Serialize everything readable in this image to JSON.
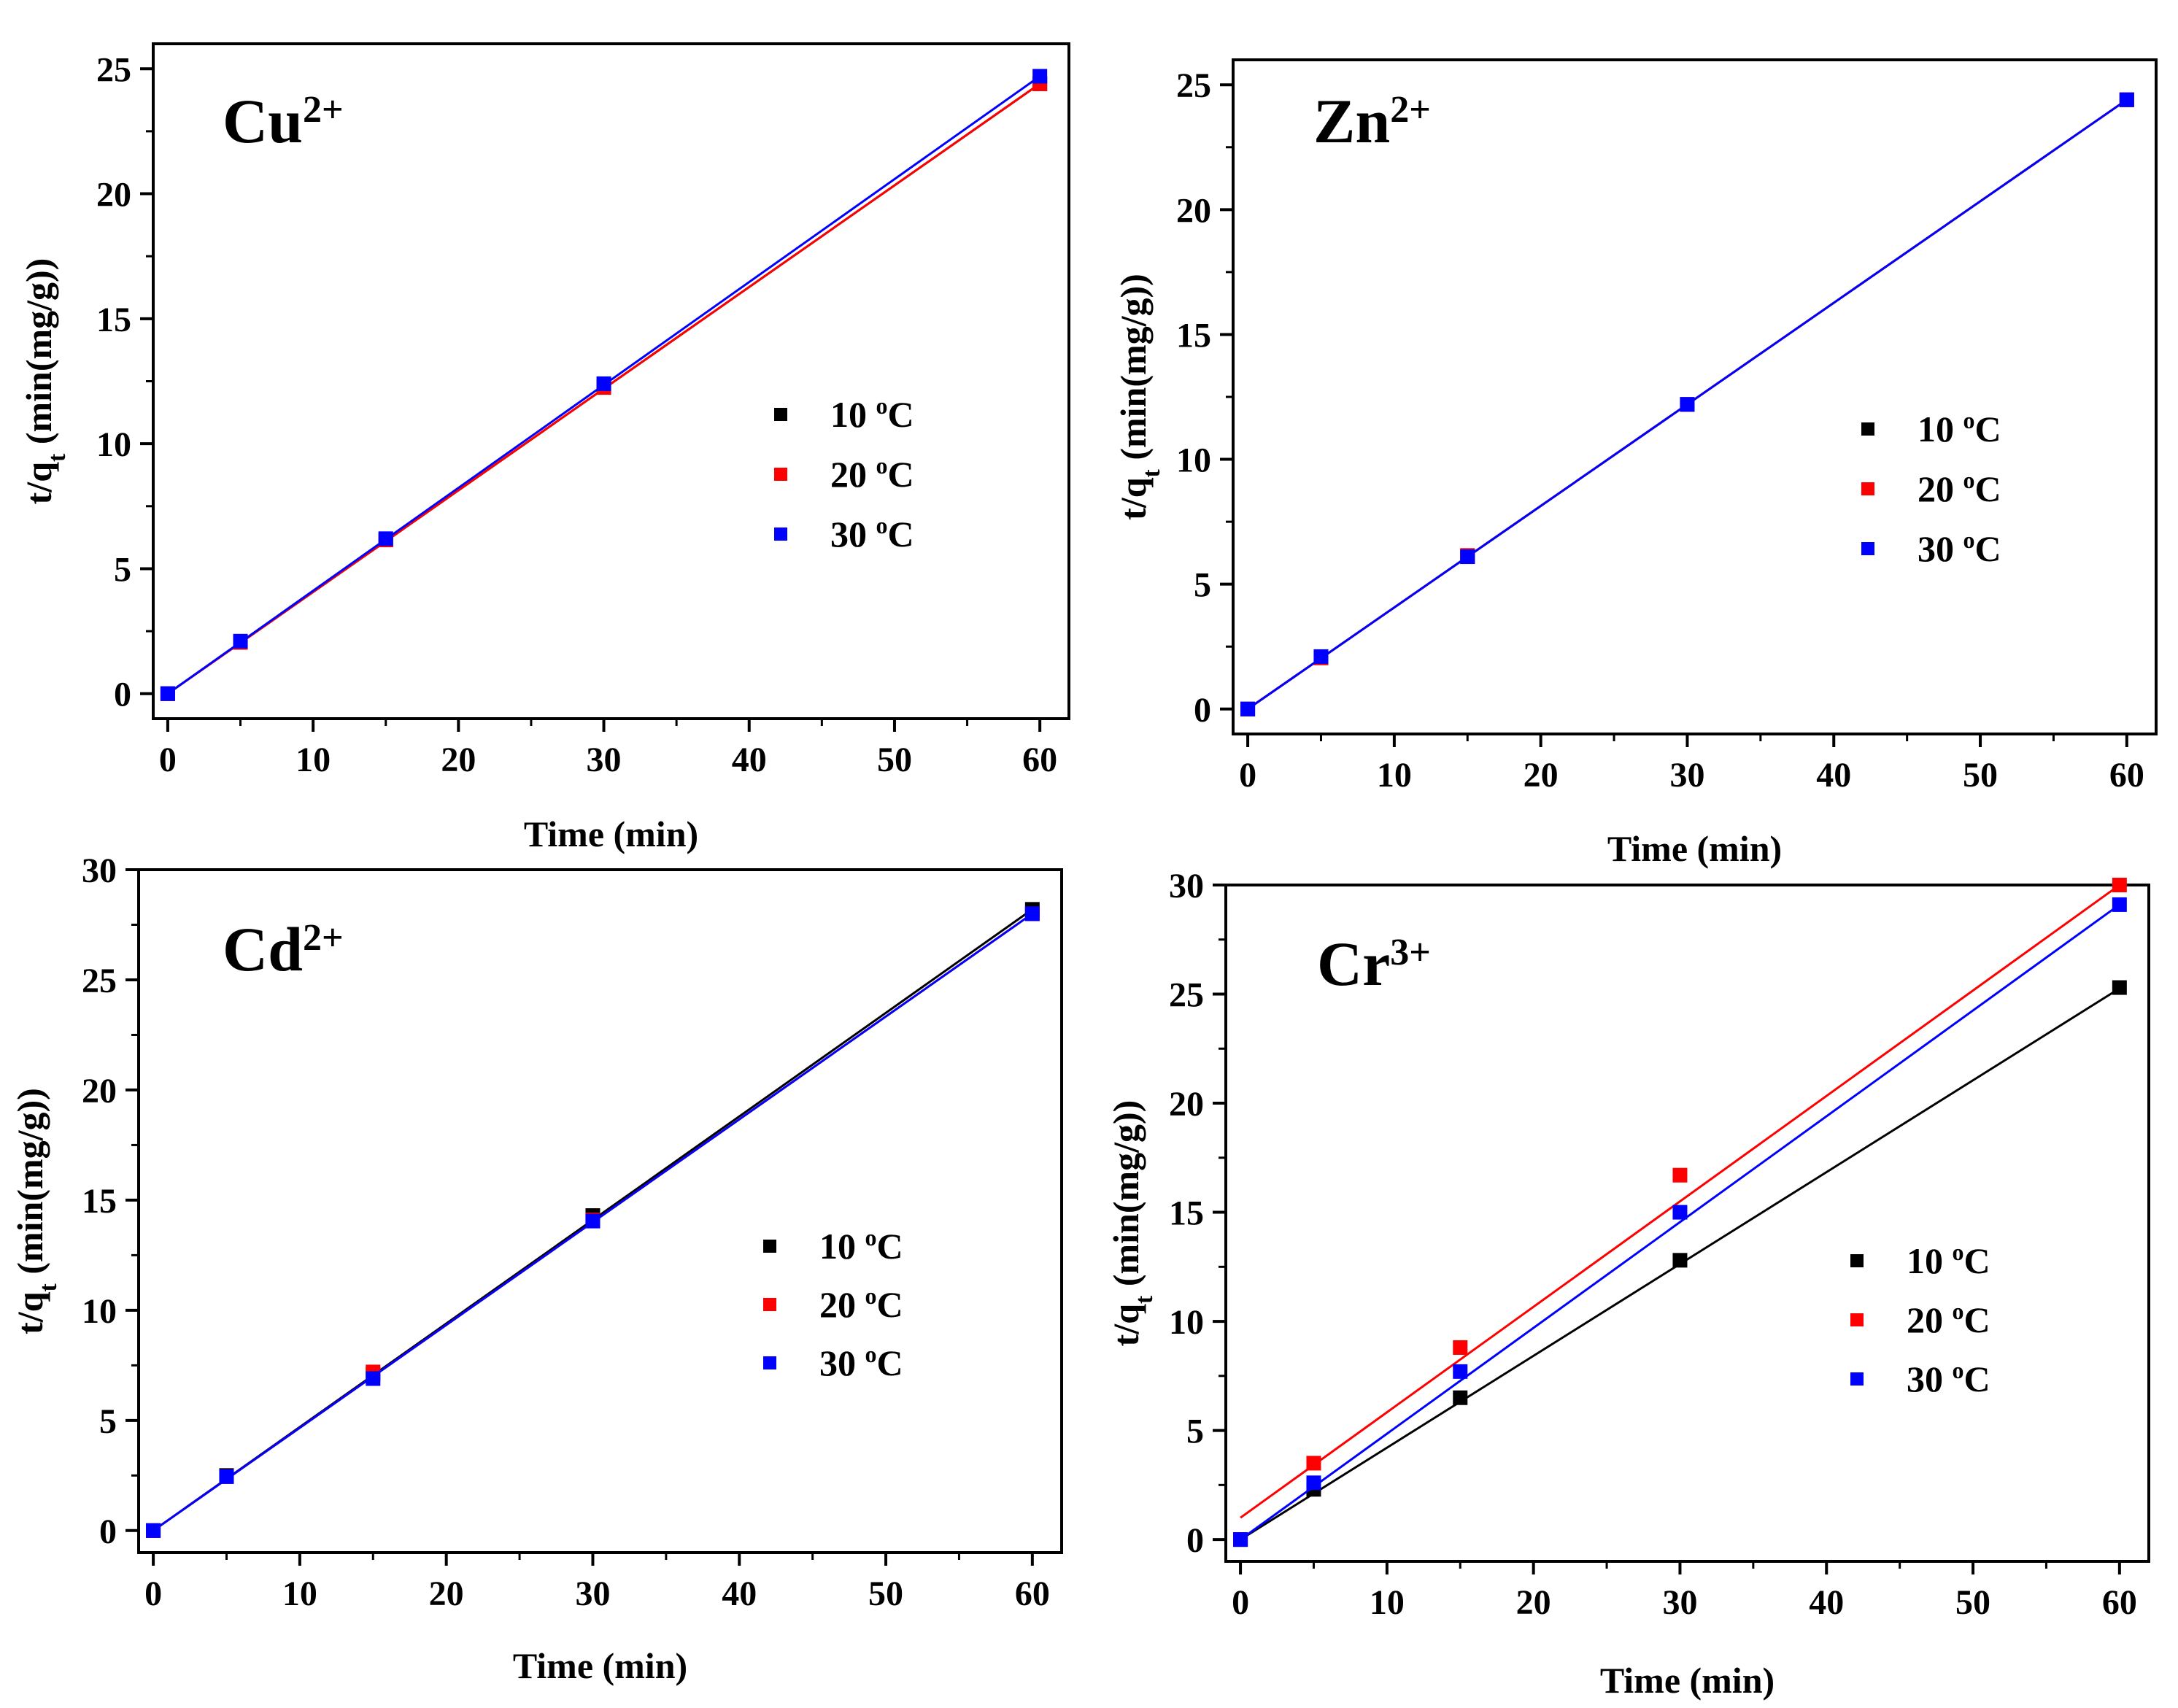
{
  "chart_data": [
    {
      "type": "scatter",
      "panel": "top-left",
      "ion_label": "Cu",
      "ion_charge": "2+",
      "xlabel": "Time (min)",
      "ylabel_main": "t/q",
      "ylabel_sub": "t",
      "ylabel_rest": " (min(mg/g))",
      "xlim": [
        -1,
        62
      ],
      "ylim": [
        -1,
        26
      ],
      "xticks": [
        0,
        10,
        20,
        30,
        40,
        50,
        60
      ],
      "yticks": [
        0,
        5,
        10,
        15,
        20,
        25
      ],
      "legend_position": "center-right",
      "series": [
        {
          "name": "10",
          "unit": "oC",
          "color": "#000000",
          "x": [
            0,
            5,
            15,
            30,
            60
          ],
          "y": [
            0,
            2.05,
            6.15,
            12.3,
            24.4
          ],
          "fit": [
            0,
            0.4067
          ]
        },
        {
          "name": "20",
          "unit": "oC",
          "color": "#ff0000",
          "x": [
            0,
            5,
            15,
            30,
            60
          ],
          "y": [
            0,
            2.05,
            6.15,
            12.25,
            24.4
          ],
          "fit": [
            0,
            0.4067
          ]
        },
        {
          "name": "30",
          "unit": "oC",
          "color": "#0000ff",
          "x": [
            0,
            5,
            15,
            30,
            60
          ],
          "y": [
            0,
            2.1,
            6.2,
            12.4,
            24.7
          ],
          "fit": [
            0,
            0.4117
          ]
        }
      ]
    },
    {
      "type": "scatter",
      "panel": "top-right",
      "ion_label": "Zn",
      "ion_charge": "2+",
      "xlabel": "Time (min)",
      "ylabel_main": "t/q",
      "ylabel_sub": "t",
      "ylabel_rest": " (min(mg/g))",
      "xlim": [
        -1,
        62
      ],
      "ylim": [
        -1,
        26
      ],
      "xticks": [
        0,
        10,
        20,
        30,
        40,
        50,
        60
      ],
      "yticks": [
        0,
        5,
        10,
        15,
        20,
        25
      ],
      "legend_position": "center-right",
      "series": [
        {
          "name": "10",
          "unit": "oC",
          "color": "#000000",
          "x": [
            0,
            5,
            15,
            30,
            60
          ],
          "y": [
            0,
            2.05,
            6.1,
            12.2,
            24.4
          ],
          "fit": [
            0,
            0.4067
          ]
        },
        {
          "name": "20",
          "unit": "oC",
          "color": "#ff0000",
          "x": [
            0,
            5,
            15,
            30,
            60
          ],
          "y": [
            0,
            2.05,
            6.15,
            12.2,
            24.4
          ],
          "fit": [
            0,
            0.4067
          ]
        },
        {
          "name": "30",
          "unit": "oC",
          "color": "#0000ff",
          "x": [
            0,
            5,
            15,
            30,
            60
          ],
          "y": [
            0,
            2.1,
            6.1,
            12.2,
            24.4
          ],
          "fit": [
            0,
            0.4067
          ]
        }
      ]
    },
    {
      "type": "scatter",
      "panel": "bottom-left",
      "ion_label": "Cd",
      "ion_charge": "2+",
      "xlabel": "Time (min)",
      "ylabel_main": "t/q",
      "ylabel_sub": "t",
      "ylabel_rest": " (min(mg/g))",
      "xlim": [
        -1,
        62
      ],
      "ylim": [
        -1,
        30
      ],
      "xticks": [
        0,
        10,
        20,
        30,
        40,
        50,
        60
      ],
      "yticks": [
        0,
        5,
        10,
        15,
        20,
        25,
        30
      ],
      "legend_position": "center-right",
      "series": [
        {
          "name": "10",
          "unit": "oC",
          "color": "#000000",
          "x": [
            0,
            5,
            15,
            30,
            60
          ],
          "y": [
            0,
            2.5,
            7.1,
            14.3,
            28.2
          ],
          "fit": [
            0,
            0.47
          ]
        },
        {
          "name": "20",
          "unit": "oC",
          "color": "#ff0000",
          "x": [
            0,
            5,
            15,
            30,
            60
          ],
          "y": [
            0,
            2.45,
            7.2,
            14.1,
            28.0
          ],
          "fit": [
            0,
            0.4667
          ]
        },
        {
          "name": "30",
          "unit": "oC",
          "color": "#0000ff",
          "x": [
            0,
            5,
            15,
            30,
            60
          ],
          "y": [
            0,
            2.45,
            6.9,
            14.05,
            28.0
          ],
          "fit": [
            0,
            0.4667
          ]
        }
      ]
    },
    {
      "type": "scatter",
      "panel": "bottom-right",
      "ion_label": "Cr",
      "ion_charge": "3+",
      "xlabel": "Time (min)",
      "ylabel_main": "t/q",
      "ylabel_sub": "t",
      "ylabel_rest": " (min(mg/g))",
      "xlim": [
        -1,
        62
      ],
      "ylim": [
        -1,
        30
      ],
      "xticks": [
        0,
        10,
        20,
        30,
        40,
        50,
        60
      ],
      "yticks": [
        0,
        5,
        10,
        15,
        20,
        25,
        30
      ],
      "legend_position": "center-right",
      "series": [
        {
          "name": "10",
          "unit": "oC",
          "color": "#000000",
          "x": [
            0,
            5,
            15,
            30,
            60
          ],
          "y": [
            0,
            2.3,
            6.5,
            12.8,
            25.3
          ],
          "fit": [
            0,
            0.421
          ]
        },
        {
          "name": "20",
          "unit": "oC",
          "color": "#ff0000",
          "x": [
            0,
            5,
            15,
            30,
            60
          ],
          "y": [
            0,
            3.5,
            8.8,
            16.7,
            30.0
          ],
          "fit": [
            1.0,
            0.4833
          ]
        },
        {
          "name": "30",
          "unit": "oC",
          "color": "#0000ff",
          "x": [
            0,
            5,
            15,
            30,
            60
          ],
          "y": [
            0,
            2.6,
            7.7,
            15.0,
            29.1
          ],
          "fit": [
            0,
            0.485
          ]
        }
      ]
    }
  ]
}
